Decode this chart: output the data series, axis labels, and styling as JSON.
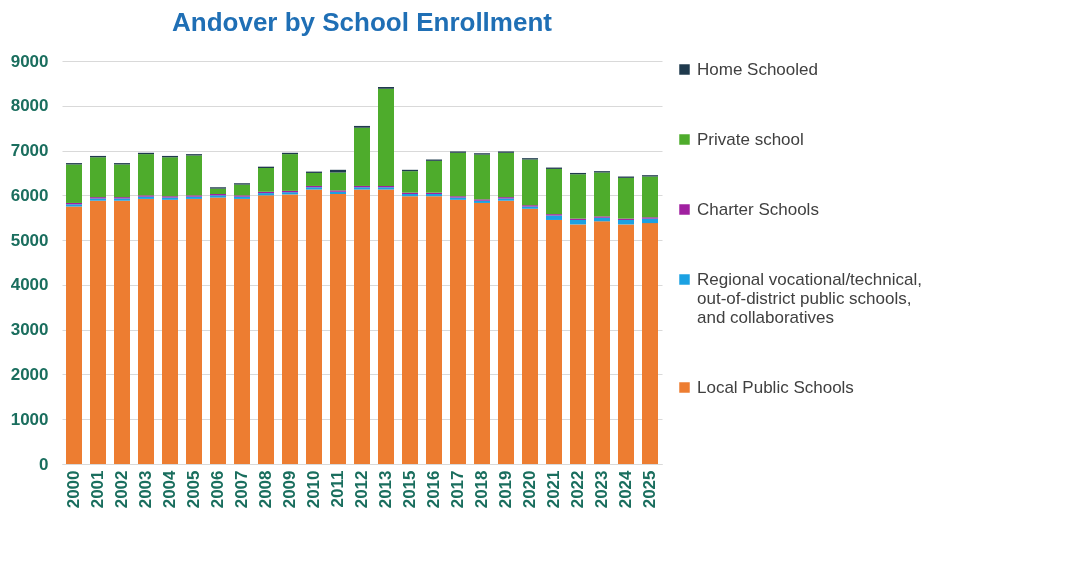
{
  "chart_data": {
    "type": "bar",
    "title": "Andover by School Enrollment",
    "stacked": true,
    "legend": "right",
    "grid": "y",
    "categories": [
      "2000",
      "2001",
      "2002",
      "2003",
      "2004",
      "2005",
      "2006",
      "2007",
      "2008",
      "2009",
      "2010",
      "2011",
      "2012",
      "2013",
      "2015",
      "2016",
      "2017",
      "2018",
      "2019",
      "2020",
      "2021",
      "2022",
      "2023",
      "2024",
      "2025"
    ],
    "ylim": [
      0,
      9000
    ],
    "yticks": [
      0,
      1000,
      2000,
      3000,
      4000,
      5000,
      6000,
      7000,
      8000,
      9000
    ],
    "series": [
      {
        "name": "Local Public Schools",
        "color": "#ed7d31",
        "values": [
          5750,
          5880,
          5880,
          5920,
          5900,
          5920,
          5950,
          5920,
          6000,
          6020,
          6130,
          6030,
          6130,
          6130,
          5980,
          5980,
          5900,
          5830,
          5880,
          5700,
          5450,
          5350,
          5420,
          5350,
          5380
        ]
      },
      {
        "name": "Regional vocational/technical, out-of-district public schools, and collaboratives",
        "color": "#1ba1e2",
        "values": [
          50,
          50,
          50,
          50,
          50,
          50,
          50,
          50,
          50,
          50,
          50,
          50,
          50,
          50,
          50,
          50,
          50,
          50,
          50,
          50,
          100,
          100,
          80,
          100,
          100
        ]
      },
      {
        "name": "Charter Schools",
        "color": "#a020a0",
        "values": [
          30,
          30,
          30,
          30,
          30,
          30,
          30,
          30,
          30,
          30,
          30,
          30,
          30,
          30,
          30,
          30,
          30,
          30,
          30,
          30,
          30,
          30,
          30,
          30,
          30
        ]
      },
      {
        "name": "Private school",
        "color": "#4eac2c",
        "values": [
          860,
          890,
          730,
          920,
          870,
          890,
          120,
          240,
          530,
          820,
          290,
          400,
          1300,
          2170,
          480,
          710,
          970,
          1000,
          990,
          1020,
          1010,
          990,
          980,
          910,
          910
        ]
      },
      {
        "name": "Home Schooled",
        "color": "#1f3a4d",
        "values": [
          30,
          30,
          30,
          30,
          30,
          30,
          30,
          30,
          30,
          30,
          30,
          60,
          40,
          40,
          30,
          30,
          30,
          30,
          30,
          30,
          30,
          30,
          30,
          30,
          30
        ]
      }
    ]
  }
}
